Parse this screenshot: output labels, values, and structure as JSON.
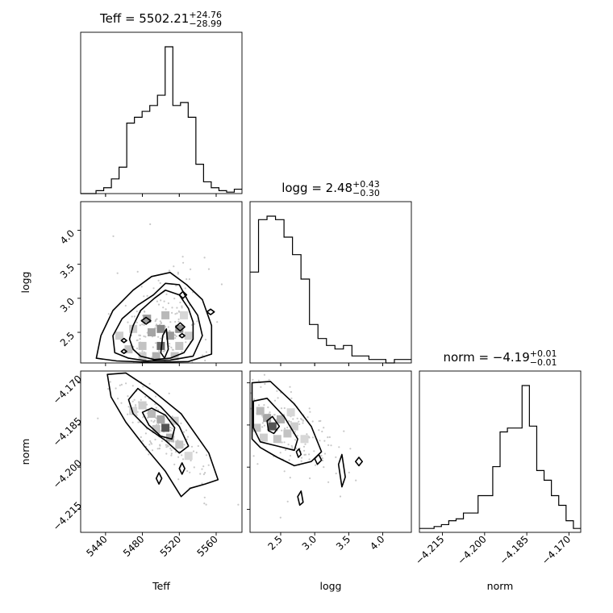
{
  "chart_data": {
    "type": "corner",
    "params": [
      {
        "name": "Teff",
        "title_prefix": "Teff = 5502.21",
        "title_sup": "+24.76",
        "title_sub": "−28.99",
        "range": [
          5413,
          5588
        ],
        "ticks": [
          5440,
          5480,
          5520,
          5560
        ],
        "tick_labels": [
          "5440",
          "5480",
          "5520",
          "5560"
        ]
      },
      {
        "name": "logg",
        "title_prefix": "logg = 2.48",
        "title_sup": "+0.43",
        "title_sub": "−0.30",
        "range": [
          2.05,
          4.42
        ],
        "ticks": [
          2.5,
          3.0,
          3.5,
          4.0
        ],
        "tick_labels": [
          "2.5",
          "3.0",
          "3.5",
          "4.0"
        ]
      },
      {
        "name": "norm",
        "title_prefix": "norm = −4.19",
        "title_sup": "+0.01",
        "title_sub": "−0.01",
        "range": [
          -4.2232,
          -4.1658
        ],
        "ticks": [
          -4.215,
          -4.2,
          -4.185,
          -4.17
        ],
        "tick_labels": [
          "−4.215",
          "−4.200",
          "−4.185",
          "−4.170"
        ]
      }
    ],
    "histograms": [
      [
        0,
        0,
        2,
        4,
        10,
        18,
        48,
        52,
        56,
        60,
        67,
        100,
        60,
        62,
        52,
        20,
        8,
        4,
        2,
        1,
        3
      ],
      [
        26,
        41,
        42,
        41,
        36,
        31,
        24,
        11,
        7,
        5,
        4,
        5,
        2,
        2,
        1,
        1,
        0,
        1,
        1
      ],
      [
        2,
        2,
        3,
        4,
        6,
        7,
        10,
        10,
        19,
        19,
        34,
        52,
        54,
        54,
        76,
        55,
        32,
        27,
        19,
        14,
        6,
        2
      ]
    ],
    "contours": {
      "logg_vs_Teff": [
        [
          [
            5470,
            2.25
          ],
          [
            5478,
            2.15
          ],
          [
            5493,
            2.1
          ],
          [
            5510,
            2.12
          ],
          [
            5525,
            2.2
          ],
          [
            5535,
            2.4
          ],
          [
            5535,
            2.65
          ],
          [
            5530,
            2.85
          ],
          [
            5520,
            3.05
          ],
          [
            5505,
            3.12
          ],
          [
            5493,
            3.0
          ],
          [
            5478,
            2.82
          ],
          [
            5470,
            2.6
          ],
          [
            5466,
            2.4
          ]
        ],
        [
          [
            5450,
            2.2
          ],
          [
            5465,
            2.12
          ],
          [
            5485,
            2.08
          ],
          [
            5510,
            2.09
          ],
          [
            5535,
            2.15
          ],
          [
            5545,
            2.45
          ],
          [
            5540,
            2.75
          ],
          [
            5530,
            2.95
          ],
          [
            5520,
            3.2
          ],
          [
            5505,
            3.22
          ],
          [
            5492,
            3.05
          ],
          [
            5475,
            2.9
          ],
          [
            5458,
            2.7
          ],
          [
            5448,
            2.45
          ]
        ],
        [
          [
            5430,
            2.12
          ],
          [
            5452,
            2.08
          ],
          [
            5490,
            2.06
          ],
          [
            5530,
            2.07
          ],
          [
            5555,
            2.18
          ],
          [
            5555,
            2.6
          ],
          [
            5545,
            2.98
          ],
          [
            5528,
            3.2
          ],
          [
            5510,
            3.38
          ],
          [
            5490,
            3.32
          ],
          [
            5470,
            3.12
          ],
          [
            5448,
            2.82
          ],
          [
            5435,
            2.45
          ]
        ],
        [
          [
            5500,
            2.2
          ],
          [
            5504,
            2.12
          ],
          [
            5508,
            2.25
          ],
          [
            5506,
            2.55
          ],
          [
            5502,
            2.45
          ]
        ],
        [
          [
            5516,
            2.58
          ],
          [
            5521,
            2.52
          ],
          [
            5526,
            2.58
          ],
          [
            5521,
            2.64
          ]
        ],
        [
          [
            5479,
            2.67
          ],
          [
            5484,
            2.62
          ],
          [
            5489,
            2.67
          ],
          [
            5484,
            2.72
          ]
        ],
        [
          [
            5457,
            2.38
          ],
          [
            5460,
            2.35
          ],
          [
            5463,
            2.38
          ],
          [
            5460,
            2.41
          ]
        ],
        [
          [
            5457,
            2.22
          ],
          [
            5460,
            2.19
          ],
          [
            5463,
            2.22
          ],
          [
            5460,
            2.25
          ]
        ],
        [
          [
            5520,
            2.45
          ],
          [
            5523,
            2.42
          ],
          [
            5526,
            2.45
          ],
          [
            5523,
            2.48
          ]
        ],
        [
          [
            5520,
            3.05
          ],
          [
            5524,
            3.0
          ],
          [
            5528,
            3.05
          ],
          [
            5524,
            3.1
          ]
        ],
        [
          [
            5550,
            2.8
          ],
          [
            5554,
            2.76
          ],
          [
            5558,
            2.8
          ],
          [
            5554,
            2.84
          ]
        ]
      ],
      "norm_vs_Teff": [
        [
          [
            5480,
            -4.1805
          ],
          [
            5490,
            -4.179
          ],
          [
            5505,
            -4.1815
          ],
          [
            5515,
            -4.186
          ],
          [
            5512,
            -4.19
          ],
          [
            5500,
            -4.189
          ],
          [
            5487,
            -4.185
          ]
        ],
        [
          [
            5465,
            -4.176
          ],
          [
            5475,
            -4.172
          ],
          [
            5500,
            -4.1785
          ],
          [
            5520,
            -4.1855
          ],
          [
            5530,
            -4.1925
          ],
          [
            5520,
            -4.195
          ],
          [
            5505,
            -4.1905
          ],
          [
            5485,
            -4.186
          ],
          [
            5470,
            -4.181
          ]
        ],
        [
          [
            5442,
            -4.167
          ],
          [
            5462,
            -4.1665
          ],
          [
            5492,
            -4.173
          ],
          [
            5522,
            -4.181
          ],
          [
            5552,
            -4.195
          ],
          [
            5562,
            -4.2045
          ],
          [
            5548,
            -4.206
          ],
          [
            5532,
            -4.2075
          ],
          [
            5522,
            -4.2105
          ],
          [
            5505,
            -4.2015
          ],
          [
            5482,
            -4.1925
          ],
          [
            5462,
            -4.184
          ],
          [
            5446,
            -4.175
          ]
        ],
        [
          [
            5520,
            -4.2005
          ],
          [
            5523,
            -4.1985
          ],
          [
            5526,
            -4.2005
          ],
          [
            5523,
            -4.2025
          ]
        ],
        [
          [
            5495,
            -4.204
          ],
          [
            5498,
            -4.202
          ],
          [
            5501,
            -4.204
          ],
          [
            5498,
            -4.206
          ]
        ]
      ],
      "norm_vs_logg": [
        [
          [
            2.3,
            -4.1835
          ],
          [
            2.38,
            -4.182
          ],
          [
            2.48,
            -4.1855
          ],
          [
            2.4,
            -4.188
          ],
          [
            2.32,
            -4.187
          ]
        ],
        [
          [
            2.1,
            -4.1765
          ],
          [
            2.3,
            -4.1755
          ],
          [
            2.55,
            -4.182
          ],
          [
            2.75,
            -4.19
          ],
          [
            2.7,
            -4.194
          ],
          [
            2.45,
            -4.1925
          ],
          [
            2.2,
            -4.191
          ],
          [
            2.1,
            -4.186
          ]
        ],
        [
          [
            2.08,
            -4.17
          ],
          [
            2.35,
            -4.1695
          ],
          [
            2.7,
            -4.1775
          ],
          [
            2.95,
            -4.1855
          ],
          [
            3.1,
            -4.1945
          ],
          [
            2.95,
            -4.198
          ],
          [
            2.7,
            -4.1995
          ],
          [
            2.45,
            -4.1965
          ],
          [
            2.2,
            -4.193
          ],
          [
            2.08,
            -4.19
          ]
        ],
        [
          [
            3.35,
            -4.199
          ],
          [
            3.4,
            -4.1955
          ],
          [
            3.45,
            -4.2035
          ],
          [
            3.4,
            -4.207
          ]
        ],
        [
          [
            2.75,
            -4.2105
          ],
          [
            2.8,
            -4.2085
          ],
          [
            2.83,
            -4.2125
          ],
          [
            2.78,
            -4.2135
          ]
        ],
        [
          [
            3.0,
            -4.197
          ],
          [
            3.06,
            -4.1955
          ],
          [
            3.1,
            -4.1975
          ],
          [
            3.04,
            -4.199
          ]
        ],
        [
          [
            3.6,
            -4.198
          ],
          [
            3.65,
            -4.1965
          ],
          [
            3.7,
            -4.198
          ],
          [
            3.65,
            -4.1995
          ]
        ],
        [
          [
            2.73,
            -4.1945
          ],
          [
            2.77,
            -4.1935
          ],
          [
            2.8,
            -4.1955
          ],
          [
            2.76,
            -4.1965
          ]
        ]
      ]
    },
    "density_cells": {
      "logg_vs_Teff": [
        [
          5500,
          2.3,
          0.75
        ],
        [
          5500,
          2.55,
          0.6
        ],
        [
          5510,
          2.45,
          0.5
        ],
        [
          5490,
          2.5,
          0.45
        ],
        [
          5505,
          2.75,
          0.35
        ],
        [
          5480,
          2.3,
          0.3
        ],
        [
          5520,
          2.3,
          0.3
        ],
        [
          5480,
          2.15,
          0.25
        ],
        [
          5520,
          2.55,
          0.55
        ],
        [
          5485,
          2.7,
          0.5
        ],
        [
          5465,
          2.25,
          0.3
        ],
        [
          5530,
          2.45,
          0.25
        ],
        [
          5470,
          2.55,
          0.25
        ],
        [
          5495,
          2.15,
          0.4
        ],
        [
          5515,
          2.15,
          0.3
        ],
        [
          5455,
          2.45,
          0.25
        ],
        [
          5525,
          2.75,
          0.2
        ]
      ],
      "norm_vs_Teff": [
        [
          5505,
          -4.186,
          0.85
        ],
        [
          5500,
          -4.183,
          0.45
        ],
        [
          5510,
          -4.1895,
          0.4
        ],
        [
          5490,
          -4.181,
          0.35
        ],
        [
          5520,
          -4.192,
          0.3
        ],
        [
          5480,
          -4.178,
          0.25
        ],
        [
          5470,
          -4.18,
          0.2
        ],
        [
          5530,
          -4.196,
          0.2
        ],
        [
          5495,
          -4.1865,
          0.3
        ],
        [
          5515,
          -4.1835,
          0.25
        ]
      ],
      "norm_vs_logg": [
        [
          2.38,
          -4.1855,
          0.85
        ],
        [
          2.3,
          -4.1825,
          0.45
        ],
        [
          2.5,
          -4.183,
          0.4
        ],
        [
          2.2,
          -4.18,
          0.35
        ],
        [
          2.6,
          -4.188,
          0.3
        ],
        [
          2.15,
          -4.186,
          0.3
        ],
        [
          2.7,
          -4.1855,
          0.25
        ],
        [
          2.45,
          -4.19,
          0.3
        ],
        [
          2.85,
          -4.19,
          0.2
        ],
        [
          2.25,
          -4.1895,
          0.25
        ],
        [
          2.65,
          -4.1805,
          0.2
        ]
      ]
    },
    "scatter_seed": 7,
    "grid": false
  }
}
